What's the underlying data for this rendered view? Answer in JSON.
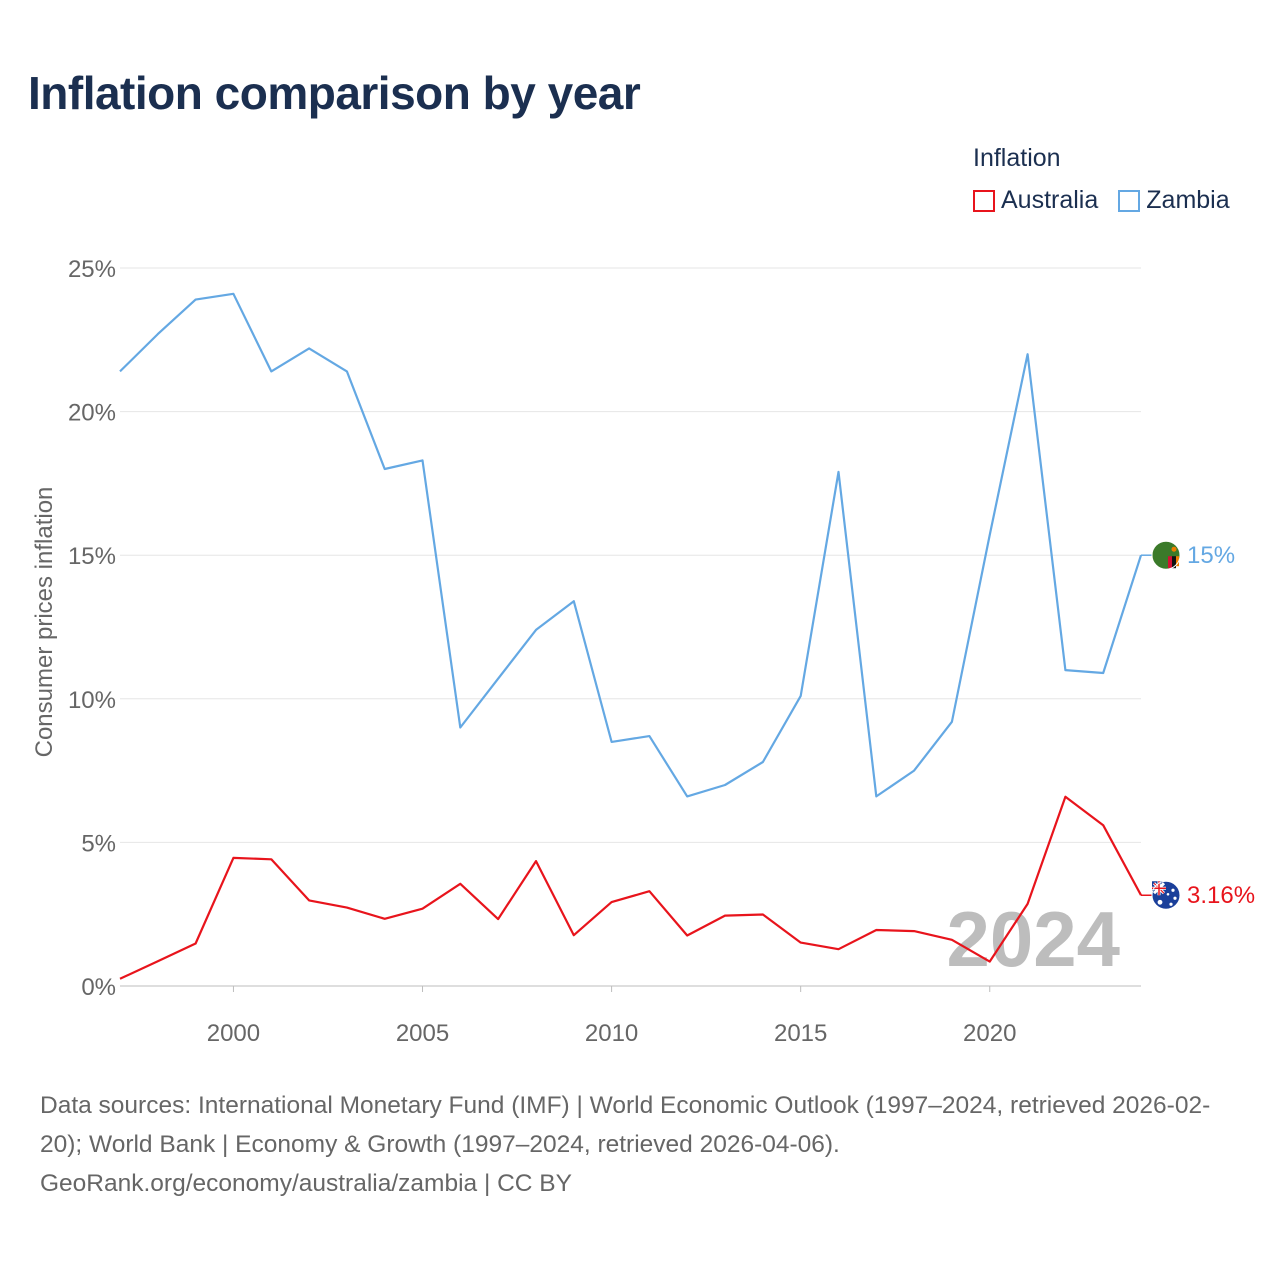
{
  "title": "Inflation comparison by year",
  "legend": {
    "title": "Inflation",
    "items": [
      {
        "label": "Australia",
        "color": "#e8141c"
      },
      {
        "label": "Zambia",
        "color": "#64a8e3"
      }
    ]
  },
  "watermark_year": "2024",
  "footer": {
    "sources": "Data sources: International Monetary Fund (IMF) | World Economic Outlook (1997–2024, retrieved 2026-02-20); World Bank | Economy & Growth (1997–2024, retrieved 2026-04-06).",
    "attribution": "GeoRank.org/economy/australia/zambia | CC BY"
  },
  "chart_data": {
    "type": "line",
    "ylabel": "Consumer prices inflation",
    "xlabel": "",
    "xlim": [
      1997,
      2024
    ],
    "ylim": [
      0,
      25
    ],
    "x_ticks": [
      2000,
      2005,
      2010,
      2015,
      2020
    ],
    "y_ticks": [
      {
        "value": 0,
        "label": "0%"
      },
      {
        "value": 5,
        "label": "5%"
      },
      {
        "value": 10,
        "label": "10%"
      },
      {
        "value": 15,
        "label": "15%"
      },
      {
        "value": 20,
        "label": "20%"
      },
      {
        "value": 25,
        "label": "25%"
      }
    ],
    "grid": true,
    "x": [
      1997,
      1998,
      1999,
      2000,
      2001,
      2002,
      2003,
      2004,
      2005,
      2006,
      2007,
      2008,
      2009,
      2010,
      2011,
      2012,
      2013,
      2014,
      2015,
      2016,
      2017,
      2018,
      2019,
      2020,
      2021,
      2022,
      2023,
      2024
    ],
    "series": [
      {
        "name": "Zambia",
        "color": "#64a8e3",
        "end_label": "15%",
        "flag": "zambia-flag-icon",
        "values": [
          21.4,
          22.7,
          23.9,
          24.1,
          21.4,
          22.2,
          21.4,
          18.0,
          18.3,
          9.0,
          10.7,
          12.4,
          13.4,
          8.5,
          8.7,
          6.6,
          7.0,
          7.8,
          10.1,
          17.9,
          6.6,
          7.5,
          9.2,
          15.7,
          22.0,
          11.0,
          10.9,
          15.0
        ]
      },
      {
        "name": "Australia",
        "color": "#e8141c",
        "end_label": "3.16%",
        "flag": "australia-flag-icon",
        "values": [
          0.25,
          0.86,
          1.48,
          4.46,
          4.41,
          2.98,
          2.73,
          2.34,
          2.69,
          3.56,
          2.33,
          4.35,
          1.77,
          2.92,
          3.3,
          1.76,
          2.45,
          2.49,
          1.51,
          1.28,
          1.95,
          1.91,
          1.61,
          0.85,
          2.86,
          6.59,
          5.6,
          3.16
        ]
      }
    ]
  }
}
